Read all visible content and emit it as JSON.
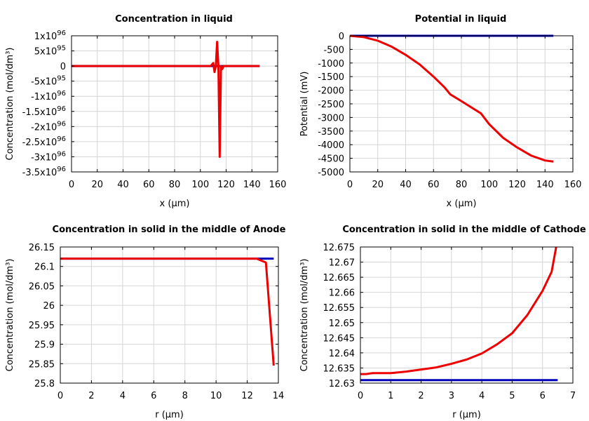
{
  "chart_data": [
    {
      "type": "line",
      "title": "Concentration in liquid",
      "xlabel": "x (µm)",
      "ylabel": "Concentration (mol/dm³)",
      "xlim": [
        0,
        160
      ],
      "ylim": [
        -3.5e+96,
        1e+96
      ],
      "xticks": [
        0,
        20,
        40,
        60,
        80,
        100,
        120,
        140,
        160
      ],
      "xtick_labels": [
        "0",
        "20",
        "40",
        "60",
        "80",
        "100",
        "120",
        "140",
        "160"
      ],
      "yticks": [
        1e+96,
        5e+95,
        0,
        -5e+95,
        -1e+96,
        -1.5e+96,
        -2e+96,
        -2.5e+96,
        -3e+96,
        -3.5e+96
      ],
      "ytick_labels": [
        {
          "mant": "1x10",
          "exp": "96"
        },
        {
          "mant": "5x10",
          "exp": "95"
        },
        {
          "mant": "0",
          "exp": ""
        },
        {
          "mant": "-5x10",
          "exp": "95"
        },
        {
          "mant": "-1x10",
          "exp": "96"
        },
        {
          "mant": "-1.5x10",
          "exp": "96"
        },
        {
          "mant": "-2x10",
          "exp": "96"
        },
        {
          "mant": "-2.5x10",
          "exp": "96"
        },
        {
          "mant": "-3x10",
          "exp": "96"
        },
        {
          "mant": "-3.5x10",
          "exp": "96"
        }
      ],
      "grid": true,
      "series": [
        {
          "color": "#0000bb",
          "x": [
            0,
            146
          ],
          "y": [
            0,
            0
          ]
        },
        {
          "color": "#ee0000",
          "x": [
            0,
            108,
            110,
            111,
            112,
            113,
            114,
            115,
            116,
            117,
            118,
            119,
            146
          ],
          "y": [
            0,
            0,
            1e+95,
            -2e+95,
            0,
            8e+95,
            0,
            -3e+96,
            0,
            -1e+95,
            0,
            0,
            0
          ]
        }
      ]
    },
    {
      "type": "line",
      "title": "Potential in liquid",
      "xlabel": "x (µm)",
      "ylabel": "Potential (mV)",
      "xlim": [
        0,
        160
      ],
      "ylim": [
        -5000,
        0
      ],
      "xticks": [
        0,
        20,
        40,
        60,
        80,
        100,
        120,
        140,
        160
      ],
      "xtick_labels": [
        "0",
        "20",
        "40",
        "60",
        "80",
        "100",
        "120",
        "140",
        "160"
      ],
      "yticks": [
        0,
        -500,
        -1000,
        -1500,
        -2000,
        -2500,
        -3000,
        -3500,
        -4000,
        -4500,
        -5000
      ],
      "ytick_labels": [
        {
          "mant": "0",
          "exp": ""
        },
        {
          "mant": "-500",
          "exp": ""
        },
        {
          "mant": "-1000",
          "exp": ""
        },
        {
          "mant": "-1500",
          "exp": ""
        },
        {
          "mant": "-2000",
          "exp": ""
        },
        {
          "mant": "-2500",
          "exp": ""
        },
        {
          "mant": "-3000",
          "exp": ""
        },
        {
          "mant": "-3500",
          "exp": ""
        },
        {
          "mant": "-4000",
          "exp": ""
        },
        {
          "mant": "-4500",
          "exp": ""
        },
        {
          "mant": "-5000",
          "exp": ""
        }
      ],
      "grid": true,
      "series": [
        {
          "color": "#0000bb",
          "x": [
            0,
            146
          ],
          "y": [
            0,
            0
          ]
        },
        {
          "color": "#ee0000",
          "x": [
            0,
            10,
            20,
            30,
            40,
            50,
            60,
            68,
            72,
            80,
            94,
            100,
            110,
            120,
            130,
            140,
            146
          ],
          "y": [
            0,
            -50,
            -180,
            -400,
            -700,
            -1050,
            -1500,
            -1900,
            -2150,
            -2400,
            -2850,
            -3250,
            -3750,
            -4100,
            -4400,
            -4580,
            -4620
          ]
        }
      ]
    },
    {
      "type": "line",
      "title": "Concentration in solid in the middle of Anode",
      "xlabel": "r (µm)",
      "ylabel": "Concentration (mol/dm³)",
      "xlim": [
        0,
        14
      ],
      "ylim": [
        25.8,
        26.15
      ],
      "xticks": [
        0,
        2,
        4,
        6,
        8,
        10,
        12,
        14
      ],
      "xtick_labels": [
        "0",
        "2",
        "4",
        "6",
        "8",
        "10",
        "12",
        "14"
      ],
      "yticks": [
        26.15,
        26.1,
        26.05,
        26,
        25.95,
        25.9,
        25.85,
        25.8
      ],
      "ytick_labels": [
        {
          "mant": "26.15",
          "exp": ""
        },
        {
          "mant": "26.1",
          "exp": ""
        },
        {
          "mant": "26.05",
          "exp": ""
        },
        {
          "mant": "26",
          "exp": ""
        },
        {
          "mant": "25.95",
          "exp": ""
        },
        {
          "mant": "25.9",
          "exp": ""
        },
        {
          "mant": "25.85",
          "exp": ""
        },
        {
          "mant": "25.8",
          "exp": ""
        }
      ],
      "grid": true,
      "series": [
        {
          "color": "#0000bb",
          "x": [
            0,
            13.7
          ],
          "y": [
            26.12,
            26.12
          ]
        },
        {
          "color": "#ee0000",
          "x": [
            0,
            12.6,
            13.2,
            13.7
          ],
          "y": [
            26.12,
            26.12,
            26.11,
            25.845
          ]
        }
      ]
    },
    {
      "type": "line",
      "title": "Concentration in solid in the middle of Cathode",
      "xlabel": "r (µm)",
      "ylabel": "Concentration (mol/dm³)",
      "xlim": [
        0,
        7
      ],
      "ylim": [
        12.63,
        12.675
      ],
      "xticks": [
        0,
        1,
        2,
        3,
        4,
        5,
        6,
        7
      ],
      "xtick_labels": [
        "0",
        "1",
        "2",
        "3",
        "4",
        "5",
        "6",
        "7"
      ],
      "yticks": [
        12.675,
        12.67,
        12.665,
        12.66,
        12.655,
        12.65,
        12.645,
        12.64,
        12.635,
        12.63
      ],
      "ytick_labels": [
        {
          "mant": "12.675",
          "exp": ""
        },
        {
          "mant": "12.67",
          "exp": ""
        },
        {
          "mant": "12.665",
          "exp": ""
        },
        {
          "mant": "12.66",
          "exp": ""
        },
        {
          "mant": "12.655",
          "exp": ""
        },
        {
          "mant": "12.65",
          "exp": ""
        },
        {
          "mant": "12.645",
          "exp": ""
        },
        {
          "mant": "12.64",
          "exp": ""
        },
        {
          "mant": "12.635",
          "exp": ""
        },
        {
          "mant": "12.63",
          "exp": ""
        }
      ],
      "grid": true,
      "series": [
        {
          "color": "#0000bb",
          "x": [
            0,
            6.5
          ],
          "y": [
            12.631,
            12.631
          ]
        },
        {
          "color": "#ee0000",
          "x": [
            0,
            0.2,
            0.4,
            1,
            1.5,
            2,
            2.5,
            3,
            3.5,
            4,
            4.5,
            5,
            5.5,
            6,
            6.3,
            6.45
          ],
          "y": [
            12.633,
            12.633,
            12.6333,
            12.6333,
            12.6338,
            12.6345,
            12.6352,
            12.6364,
            12.6378,
            12.6398,
            12.6428,
            12.6465,
            12.6525,
            12.6605,
            12.6668,
            12.675
          ]
        }
      ]
    }
  ]
}
